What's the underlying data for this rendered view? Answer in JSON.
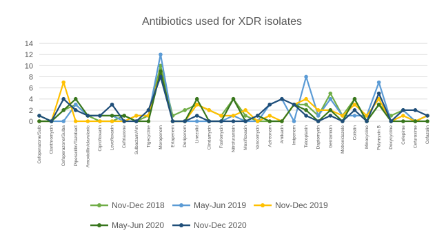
{
  "chart_data": {
    "type": "line",
    "title": "Antibiotics used for XDR isolates",
    "ylim": [
      0,
      14
    ],
    "yticks": [
      0,
      2,
      4,
      6,
      8,
      10,
      12,
      14
    ],
    "grid": "horizontal",
    "legend_position": "bottom",
    "categories": [
      "Cefoperazone/Sulb",
      "Clarithromycin",
      "Cefoperazone/Sulba",
      "Piperacillin/Tazobact",
      "Amoxicillin/clavulanic",
      "Ciprofloxacin",
      "Levofloxacin",
      "Ceftriaxone",
      "Sulbactam/Am",
      "Tigecycline",
      "Meropenem",
      "Ertapenem",
      "Doripenem",
      "Linezolid",
      "Clindamycin",
      "Fosfomycin",
      "Nitrofurantoin",
      "Moxifloxacin",
      "Vancomycin",
      "Aztreonam",
      "Amikacin",
      "Imipenem",
      "Teicoplanin",
      "Daptomycin",
      "Gentamicin",
      "Metronidazole",
      "Colistin",
      "Minocycline",
      "Polymyxin B",
      "Doxycycline",
      "Cefepime",
      "Cefuroxime",
      "Cefazolin"
    ],
    "series": [
      {
        "name": "Nov-Dec 2018",
        "color": "#70AD47",
        "values": [
          1,
          0,
          2,
          3,
          1,
          0,
          0,
          1,
          0,
          1,
          10,
          1,
          2,
          3,
          2,
          1,
          4,
          1,
          0,
          0,
          0,
          3,
          3,
          1,
          5,
          1,
          4,
          0,
          3,
          1,
          2,
          0,
          1
        ]
      },
      {
        "name": "May-Jun 2019",
        "color": "#5B9BD5",
        "values": [
          0,
          0,
          0,
          3,
          1,
          1,
          1,
          0,
          1,
          1,
          12,
          0,
          0,
          0,
          0,
          0,
          1,
          0,
          0,
          3,
          4,
          0,
          8,
          1,
          4,
          1,
          1,
          1,
          7,
          0,
          2,
          0,
          1
        ]
      },
      {
        "name": "Nov-Dec 2019",
        "color": "#FFC000",
        "values": [
          0,
          0,
          7,
          0,
          0,
          0,
          0,
          0,
          1,
          1,
          9,
          0,
          0,
          3,
          2,
          1,
          1,
          2,
          0,
          1,
          0,
          3,
          4,
          2,
          2,
          1,
          3,
          1,
          4,
          0,
          1,
          0,
          1
        ]
      },
      {
        "name": "May-Jun 2020",
        "color": "#38761D",
        "values": [
          0,
          0,
          2,
          4,
          1,
          1,
          1,
          1,
          0,
          0,
          9,
          0,
          0,
          4,
          0,
          0,
          4,
          0,
          1,
          0,
          0,
          3,
          2,
          0,
          2,
          0,
          4,
          0,
          3,
          0,
          0,
          0,
          0
        ]
      },
      {
        "name": "Nov-Dec 2020",
        "color": "#1F4E79",
        "values": [
          1,
          0,
          4,
          2,
          1,
          1,
          3,
          0,
          0,
          2,
          8,
          0,
          0,
          1,
          0,
          0,
          0,
          0,
          1,
          3,
          4,
          3,
          1,
          0,
          1,
          0,
          2,
          0,
          5,
          0,
          2,
          2,
          1
        ]
      }
    ]
  }
}
